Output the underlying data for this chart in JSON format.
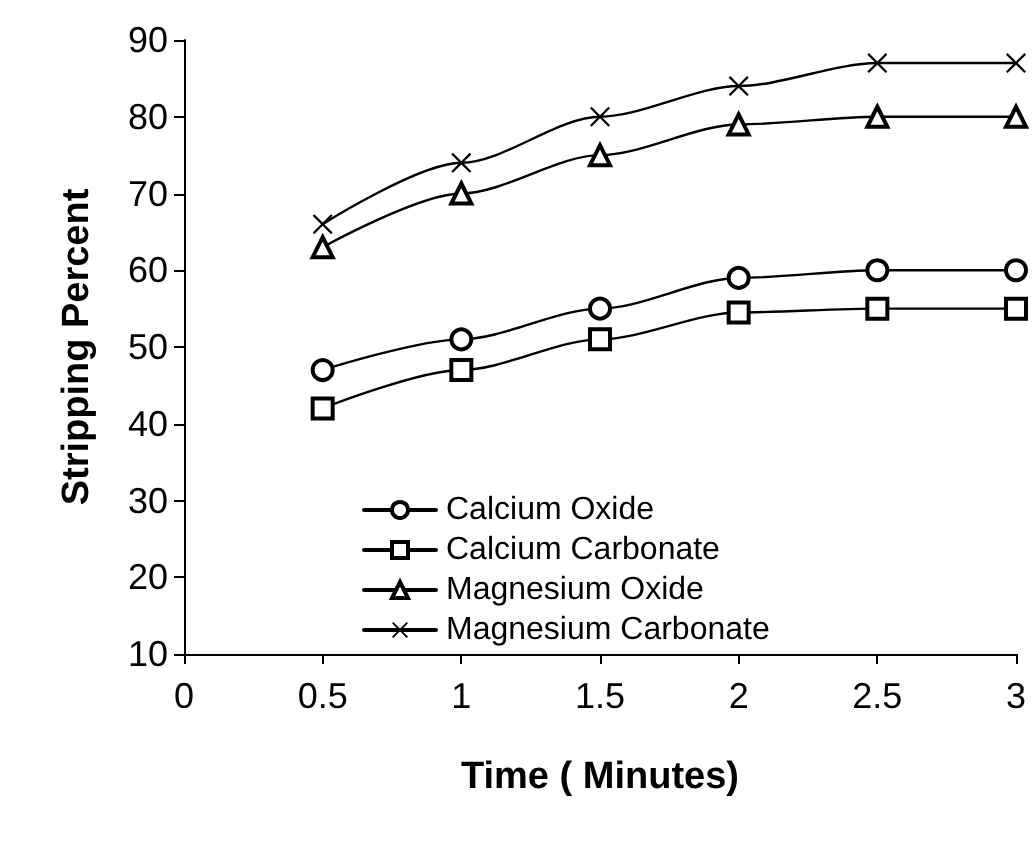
{
  "chart_data": {
    "type": "line",
    "xlabel": "Time ( Minutes)",
    "ylabel": "Stripping Percent",
    "x": [
      0.5,
      1,
      1.5,
      2,
      2.5,
      3
    ],
    "xlim": [
      0,
      3
    ],
    "xticks": [
      0,
      0.5,
      1,
      1.5,
      2,
      2.5,
      3
    ],
    "ylim": [
      10,
      90
    ],
    "yticks": [
      10,
      20,
      30,
      40,
      50,
      60,
      70,
      80,
      90
    ],
    "grid": false,
    "legend": "left",
    "line_style": "solid",
    "series": [
      {
        "name": "Calcium Oxide",
        "color": "#000000",
        "marker": "circle",
        "values": [
          47,
          51,
          55,
          59,
          60,
          60
        ]
      },
      {
        "name": "Calcium Carbonate",
        "color": "#000000",
        "marker": "square",
        "values": [
          42,
          47,
          51,
          54.5,
          55,
          55
        ]
      },
      {
        "name": "Magnesium Oxide",
        "color": "#000000",
        "marker": "triangle",
        "values": [
          63,
          70,
          75,
          79,
          80,
          80
        ]
      },
      {
        "name": "Magnesium Carbonate",
        "color": "#000000",
        "marker": "cross",
        "values": [
          66,
          74,
          80,
          84,
          87,
          87
        ]
      }
    ]
  }
}
